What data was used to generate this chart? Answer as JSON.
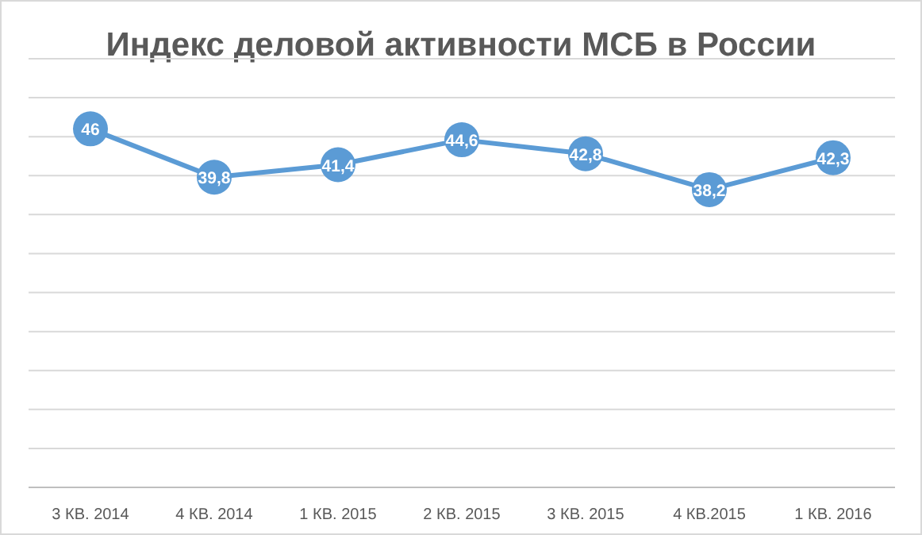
{
  "chart_data": {
    "type": "line",
    "title": "Индекс деловой активности МСБ в России",
    "categories": [
      "3 КВ. 2014",
      "4 КВ. 2014",
      "1 КВ. 2015",
      "2 КВ. 2015",
      "3 КВ. 2015",
      "4 КВ.2015",
      "1 КВ. 2016"
    ],
    "series": [
      {
        "color": "#5b9bd5",
        "values": [
          46,
          39.8,
          41.4,
          44.6,
          42.8,
          38.2,
          42.3
        ],
        "value_labels": [
          "46",
          "39,8",
          "41,4",
          "44,6",
          "42,8",
          "38,2",
          "42,3"
        ]
      }
    ],
    "ylim": [
      0,
      55
    ],
    "yticks": [
      {
        "value": 0,
        "label": null
      },
      {
        "value": 5,
        "label": null
      },
      {
        "value": 10,
        "label": null
      },
      {
        "value": 15,
        "label": null
      },
      {
        "value": 20,
        "label": null
      },
      {
        "value": 25,
        "label": null
      },
      {
        "value": 30,
        "label": null
      },
      {
        "value": 35,
        "label": null
      },
      {
        "value": 40,
        "label": null
      },
      {
        "value": 45,
        "label": null
      },
      {
        "value": 50,
        "label": null
      },
      {
        "value": 55,
        "label": null
      }
    ],
    "tick_labels": "x",
    "grid": "y",
    "marker": "circle",
    "line_style": "solid"
  }
}
